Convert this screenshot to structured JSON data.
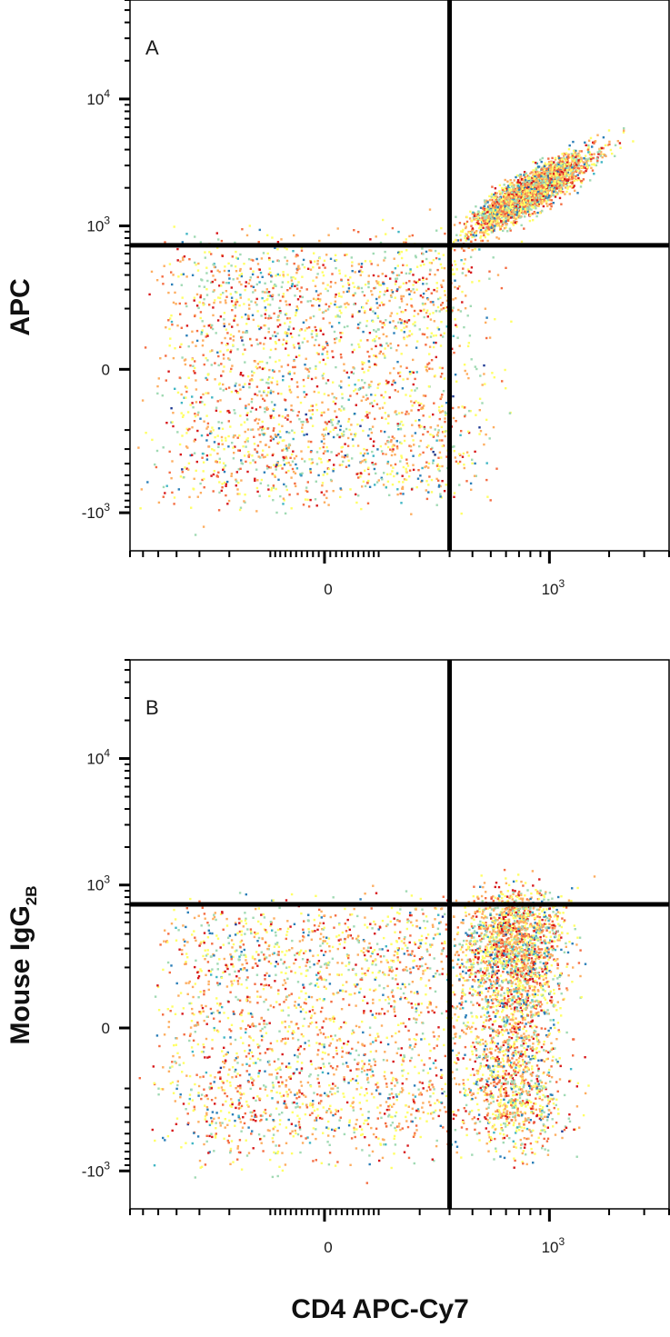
{
  "x_axis_title": "CD4 APC-Cy7",
  "chart_data": [
    {
      "type": "scatter",
      "panel_label": "A",
      "ylabel": "APC",
      "xlabel": "CD4 APC-Cy7",
      "x_tick_labels": [
        {
          "base": "0",
          "exp": ""
        },
        {
          "base": "10",
          "exp": "3"
        }
      ],
      "y_tick_labels": [
        {
          "base": "10",
          "exp": "4"
        },
        {
          "base": "10",
          "exp": "3"
        },
        {
          "base": "0",
          "exp": ""
        },
        {
          "base": "-10",
          "exp": "3"
        }
      ],
      "x_scale": "biexponential",
      "y_scale": "biexponential",
      "xlim": [
        -700,
        4000
      ],
      "ylim": [
        -2000,
        60000
      ],
      "quadrant_gate": {
        "x": 300,
        "y": 700
      },
      "populations": [
        {
          "name": "",
          "center": {
            "x": -10,
            "y": 0
          },
          "spread": {
            "x": 200,
            "y": 350
          },
          "n": 2400,
          "shape": "round"
        },
        {
          "name": "",
          "center": {
            "x": 800,
            "y": 1900
          },
          "spread": {
            "x": 0.32,
            "y": 0.3
          },
          "n": 3000,
          "shape": "diagonal"
        }
      ],
      "density_colors": [
        "#1f3a93",
        "#2c7fb8",
        "#41b6c4",
        "#a1dab4",
        "#ffff66",
        "#fdae61",
        "#f46d43",
        "#d7191c"
      ]
    },
    {
      "type": "scatter",
      "panel_label": "B",
      "ylabel": "Mouse IgG",
      "ylabel_subscript": "2B",
      "xlabel": "CD4 APC-Cy7",
      "x_tick_labels": [
        {
          "base": "0",
          "exp": ""
        },
        {
          "base": "10",
          "exp": "3"
        }
      ],
      "y_tick_labels": [
        {
          "base": "10",
          "exp": "4"
        },
        {
          "base": "10",
          "exp": "3"
        },
        {
          "base": "0",
          "exp": ""
        },
        {
          "base": "-10",
          "exp": "3"
        }
      ],
      "x_scale": "biexponential",
      "y_scale": "biexponential",
      "xlim": [
        -700,
        4000
      ],
      "ylim": [
        -2000,
        60000
      ],
      "quadrant_gate": {
        "x": 300,
        "y": 700
      },
      "populations": [
        {
          "name": "",
          "center": {
            "x": -20,
            "y": 0
          },
          "spread": {
            "x": 200,
            "y": 320
          },
          "n": 2200,
          "shape": "round"
        },
        {
          "name": "",
          "center": {
            "x": 650,
            "y": 140
          },
          "spread": {
            "x": 0.3,
            "y": 330
          },
          "n": 3000,
          "shape": "round"
        }
      ],
      "density_colors": [
        "#1f3a93",
        "#2c7fb8",
        "#41b6c4",
        "#a1dab4",
        "#ffff66",
        "#fdae61",
        "#f46d43",
        "#d7191c"
      ]
    }
  ]
}
